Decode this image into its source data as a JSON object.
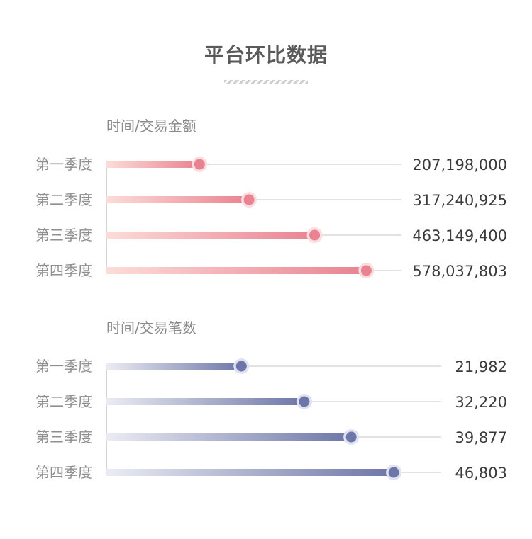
{
  "header": {
    "title": "平台环比数据"
  },
  "chart_data": [
    {
      "type": "bar",
      "title": "时间/交易金额",
      "categories": [
        "第一季度",
        "第二季度",
        "第三季度",
        "第四季度"
      ],
      "values": [
        207198000,
        317240925,
        463149400,
        578037803
      ],
      "value_labels": [
        "207,198,000",
        "317,240,925",
        "463,149,400",
        "578,037,803"
      ],
      "xlim": [
        0,
        650000000
      ],
      "colors": {
        "start": "#fddcd8",
        "end": "#e98291",
        "dot": "#e98291",
        "halo": "#fbdcdf"
      }
    },
    {
      "type": "bar",
      "title": "时间/交易笔数",
      "categories": [
        "第一季度",
        "第二季度",
        "第三季度",
        "第四季度"
      ],
      "values": [
        21982,
        32220,
        39877,
        46803
      ],
      "value_labels": [
        "21,982",
        "32,220",
        "39,877",
        "46,803"
      ],
      "xlim": [
        0,
        54300
      ],
      "colors": {
        "start": "#ebecf3",
        "end": "#6d76a8",
        "dot": "#6d76a8",
        "halo": "#dfe2f2"
      }
    }
  ]
}
